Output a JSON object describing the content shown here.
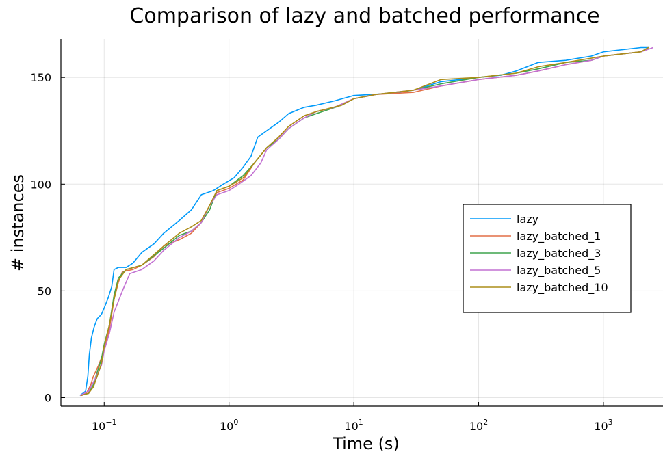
{
  "chart_data": {
    "type": "line",
    "title": "Comparison of lazy and batched performance",
    "xlabel": "Time (s)",
    "ylabel": "# instances",
    "xscale": "log",
    "xlim": [
      0.045,
      3000
    ],
    "ylim": [
      -4,
      168
    ],
    "grid": true,
    "legend_position": "right",
    "x_ticks": [
      {
        "value": 0.1,
        "base": "10",
        "exp": "−1"
      },
      {
        "value": 1,
        "base": "10",
        "exp": "0"
      },
      {
        "value": 10,
        "base": "10",
        "exp": "1"
      },
      {
        "value": 100,
        "base": "10",
        "exp": "2"
      },
      {
        "value": 1000,
        "base": "10",
        "exp": "3"
      }
    ],
    "y_ticks": [
      {
        "value": 0,
        "label": "0"
      },
      {
        "value": 50,
        "label": "50"
      },
      {
        "value": 100,
        "label": "100"
      },
      {
        "value": 150,
        "label": "150"
      }
    ],
    "series": [
      {
        "name": "lazy",
        "color": "#009AFA",
        "points": [
          [
            0.064,
            1
          ],
          [
            0.071,
            3
          ],
          [
            0.074,
            10
          ],
          [
            0.076,
            20
          ],
          [
            0.079,
            28
          ],
          [
            0.083,
            33
          ],
          [
            0.088,
            37
          ],
          [
            0.095,
            39
          ],
          [
            0.1,
            42
          ],
          [
            0.108,
            47
          ],
          [
            0.115,
            52
          ],
          [
            0.12,
            60
          ],
          [
            0.13,
            61
          ],
          [
            0.15,
            61
          ],
          [
            0.17,
            63
          ],
          [
            0.2,
            68
          ],
          [
            0.25,
            72
          ],
          [
            0.3,
            77
          ],
          [
            0.4,
            83
          ],
          [
            0.5,
            88
          ],
          [
            0.6,
            95
          ],
          [
            0.75,
            97
          ],
          [
            0.9,
            100
          ],
          [
            1.1,
            103
          ],
          [
            1.3,
            108
          ],
          [
            1.5,
            113
          ],
          [
            1.7,
            122
          ],
          [
            2,
            125
          ],
          [
            2.5,
            129
          ],
          [
            3,
            133
          ],
          [
            4,
            136
          ],
          [
            5,
            137
          ],
          [
            7,
            139
          ],
          [
            10,
            141.5
          ],
          [
            20,
            142.5
          ],
          [
            30,
            144
          ],
          [
            50,
            148
          ],
          [
            100,
            150
          ],
          [
            150,
            151
          ],
          [
            200,
            153
          ],
          [
            300,
            157
          ],
          [
            500,
            158
          ],
          [
            800,
            160
          ],
          [
            1000,
            162
          ],
          [
            2000,
            164
          ],
          [
            2300,
            164
          ]
        ]
      },
      {
        "name": "lazy_batched_1",
        "color": "#E26F46",
        "points": [
          [
            0.066,
            1
          ],
          [
            0.072,
            2
          ],
          [
            0.078,
            6
          ],
          [
            0.082,
            10
          ],
          [
            0.09,
            15
          ],
          [
            0.1,
            22
          ],
          [
            0.11,
            32
          ],
          [
            0.12,
            46
          ],
          [
            0.13,
            54
          ],
          [
            0.14,
            59
          ],
          [
            0.17,
            60
          ],
          [
            0.2,
            62
          ],
          [
            0.25,
            66
          ],
          [
            0.3,
            71
          ],
          [
            0.4,
            74
          ],
          [
            0.5,
            77
          ],
          [
            0.6,
            82
          ],
          [
            0.7,
            90
          ],
          [
            0.8,
            96
          ],
          [
            1,
            98
          ],
          [
            1.3,
            102
          ],
          [
            1.6,
            110
          ],
          [
            2,
            117
          ],
          [
            2.5,
            122
          ],
          [
            3,
            127
          ],
          [
            4,
            132
          ],
          [
            5,
            134
          ],
          [
            7,
            136
          ],
          [
            10,
            140
          ],
          [
            15,
            142
          ],
          [
            30,
            143
          ],
          [
            50,
            146
          ],
          [
            100,
            149
          ],
          [
            200,
            151
          ],
          [
            300,
            153
          ],
          [
            500,
            156
          ],
          [
            800,
            158
          ],
          [
            1000,
            160
          ],
          [
            2000,
            162
          ],
          [
            2300,
            164
          ]
        ]
      },
      {
        "name": "lazy_batched_3",
        "color": "#3DA44D",
        "points": [
          [
            0.064,
            1
          ],
          [
            0.075,
            2
          ],
          [
            0.082,
            6
          ],
          [
            0.088,
            12
          ],
          [
            0.095,
            18
          ],
          [
            0.1,
            25
          ],
          [
            0.11,
            34
          ],
          [
            0.12,
            48
          ],
          [
            0.13,
            56
          ],
          [
            0.15,
            60
          ],
          [
            0.2,
            62
          ],
          [
            0.3,
            70
          ],
          [
            0.4,
            76
          ],
          [
            0.5,
            78
          ],
          [
            0.6,
            82
          ],
          [
            0.7,
            88
          ],
          [
            0.8,
            97
          ],
          [
            1,
            99
          ],
          [
            1.3,
            104
          ],
          [
            1.6,
            110
          ],
          [
            2,
            117
          ],
          [
            2.5,
            121
          ],
          [
            3,
            126
          ],
          [
            4,
            131
          ],
          [
            5,
            133
          ],
          [
            8,
            137
          ],
          [
            10,
            140
          ],
          [
            15,
            142
          ],
          [
            30,
            144
          ],
          [
            50,
            147
          ],
          [
            100,
            150
          ],
          [
            200,
            152
          ],
          [
            300,
            154
          ],
          [
            500,
            157
          ],
          [
            800,
            158
          ],
          [
            1000,
            160
          ],
          [
            2000,
            162
          ],
          [
            2300,
            164
          ]
        ]
      },
      {
        "name": "lazy_batched_5",
        "color": "#C271D2",
        "points": [
          [
            0.064,
            1
          ],
          [
            0.075,
            3
          ],
          [
            0.085,
            9
          ],
          [
            0.095,
            15
          ],
          [
            0.1,
            22
          ],
          [
            0.11,
            30
          ],
          [
            0.12,
            40
          ],
          [
            0.14,
            50
          ],
          [
            0.16,
            58
          ],
          [
            0.2,
            60
          ],
          [
            0.25,
            64
          ],
          [
            0.3,
            69
          ],
          [
            0.4,
            75
          ],
          [
            0.5,
            78
          ],
          [
            0.6,
            82
          ],
          [
            0.7,
            90
          ],
          [
            0.8,
            95
          ],
          [
            1,
            97
          ],
          [
            1.2,
            100
          ],
          [
            1.5,
            104
          ],
          [
            1.8,
            110
          ],
          [
            2,
            116
          ],
          [
            2.5,
            121
          ],
          [
            3,
            126
          ],
          [
            4,
            131
          ],
          [
            5,
            134
          ],
          [
            7,
            136
          ],
          [
            10,
            140
          ],
          [
            15,
            142
          ],
          [
            30,
            144
          ],
          [
            50,
            146
          ],
          [
            100,
            149
          ],
          [
            200,
            151
          ],
          [
            300,
            153
          ],
          [
            500,
            156
          ],
          [
            800,
            158
          ],
          [
            1000,
            160
          ],
          [
            2000,
            162
          ],
          [
            2500,
            164
          ]
        ]
      },
      {
        "name": "lazy_batched_10",
        "color": "#AC8D18",
        "points": [
          [
            0.065,
            1
          ],
          [
            0.075,
            2
          ],
          [
            0.082,
            5
          ],
          [
            0.088,
            10
          ],
          [
            0.095,
            16
          ],
          [
            0.1,
            24
          ],
          [
            0.11,
            34
          ],
          [
            0.12,
            46
          ],
          [
            0.13,
            55
          ],
          [
            0.15,
            60
          ],
          [
            0.2,
            62
          ],
          [
            0.3,
            71
          ],
          [
            0.4,
            77
          ],
          [
            0.5,
            80
          ],
          [
            0.6,
            83
          ],
          [
            0.7,
            90
          ],
          [
            0.8,
            97
          ],
          [
            1,
            99
          ],
          [
            1.3,
            103
          ],
          [
            1.6,
            110
          ],
          [
            2,
            117
          ],
          [
            2.5,
            122
          ],
          [
            3,
            127
          ],
          [
            4,
            132
          ],
          [
            5,
            134
          ],
          [
            8,
            137
          ],
          [
            10,
            140
          ],
          [
            15,
            142
          ],
          [
            30,
            144
          ],
          [
            50,
            149
          ],
          [
            100,
            150
          ],
          [
            200,
            152
          ],
          [
            300,
            155
          ],
          [
            500,
            157
          ],
          [
            800,
            159
          ],
          [
            1000,
            160
          ],
          [
            2000,
            162
          ],
          [
            2300,
            164
          ]
        ]
      }
    ]
  }
}
